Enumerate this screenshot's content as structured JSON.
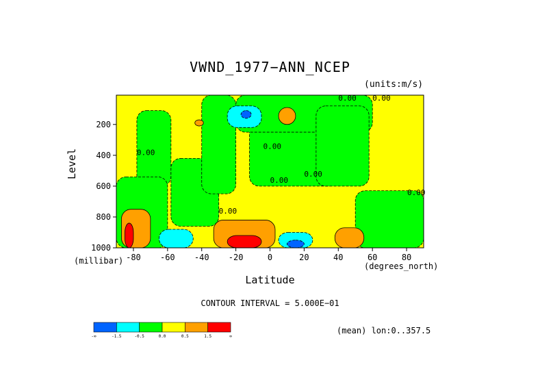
{
  "chart_data": {
    "type": "heatmap",
    "subtype": "filled-contour",
    "title": "VWND_1977−ANN_NCEP",
    "units": "(units:m/s)",
    "xlabel": "Latitude",
    "xunit": "(degrees_north)",
    "ylabel": "Level",
    "yunit": "(millibar)",
    "xlim": [
      -90,
      90
    ],
    "ylim": [
      1000,
      10
    ],
    "y_inverted": true,
    "x_ticks": [
      -80,
      -60,
      -40,
      -20,
      0,
      20,
      40,
      60,
      80
    ],
    "y_ticks": [
      200,
      400,
      600,
      800,
      1000
    ],
    "contour_interval": "CONTOUR INTERVAL = 5.000E−01",
    "mean_note": "(mean) lon:0..357.5",
    "contour_labels": [
      "0.00",
      "0.00",
      "0.00",
      "0.00",
      "0.00",
      "0.00",
      "0.00",
      "0.00"
    ],
    "colorbar": {
      "colors": [
        "#0064ff",
        "#00ffff",
        "#00ff00",
        "#ffff00",
        "#ffa000",
        "#ff0000"
      ],
      "labels": [
        "-∞",
        "-1.5",
        "-0.5",
        "0.0",
        "0.5",
        "1.5",
        "∞"
      ]
    },
    "regions": [
      {
        "level": "0.0..0.5",
        "lat": [
          -90,
          90
        ],
        "lev": [
          10,
          1000
        ]
      },
      {
        "level": "-0.5..0.0",
        "lat": [
          -78,
          -58
        ],
        "lev": [
          110,
          600
        ]
      },
      {
        "level": "-0.5..0.0",
        "lat": [
          -58,
          -30
        ],
        "lev": [
          420,
          860
        ]
      },
      {
        "level": "-0.5..0.0",
        "lat": [
          -40,
          -20
        ],
        "lev": [
          10,
          650
        ]
      },
      {
        "level": "-0.5..0.0",
        "lat": [
          -12,
          40
        ],
        "lev": [
          10,
          600
        ]
      },
      {
        "level": "-0.5..0.0",
        "lat": [
          -20,
          60
        ],
        "lev": [
          10,
          250
        ]
      },
      {
        "level": "-0.5..0.0",
        "lat": [
          50,
          90
        ],
        "lev": [
          630,
          1000
        ]
      },
      {
        "level": "-0.5..0.0",
        "lat": [
          27,
          58
        ],
        "lev": [
          80,
          600
        ]
      },
      {
        "level": "-0.5..0.0",
        "lat": [
          -90,
          -60
        ],
        "lev": [
          540,
          1000
        ]
      },
      {
        "level": "-1.5..-0.5",
        "lat": [
          -25,
          -5
        ],
        "lev": [
          80,
          220
        ]
      },
      {
        "level": "-1.5..-0.5",
        "lat": [
          -65,
          -45
        ],
        "lev": [
          880,
          1000
        ]
      },
      {
        "level": "-1.5..-0.5",
        "lat": [
          5,
          25
        ],
        "lev": [
          900,
          1000
        ]
      },
      {
        "level": "<-1.5",
        "lat": [
          -17,
          -11
        ],
        "lev": [
          110,
          160
        ]
      },
      {
        "level": "<-1.5",
        "lat": [
          10,
          20
        ],
        "lev": [
          950,
          1000
        ]
      },
      {
        "level": "0.5..1.5",
        "lat": [
          5,
          15
        ],
        "lev": [
          90,
          200
        ]
      },
      {
        "level": "0.5..1.5",
        "lat": [
          -44,
          -39
        ],
        "lev": [
          170,
          210
        ]
      },
      {
        "level": "0.5..1.5",
        "lat": [
          -33,
          3
        ],
        "lev": [
          820,
          1000
        ]
      },
      {
        "level": "0.5..1.5",
        "lat": [
          -87,
          -70
        ],
        "lev": [
          750,
          1000
        ]
      },
      {
        "level": "0.5..1.5",
        "lat": [
          38,
          55
        ],
        "lev": [
          870,
          1000
        ]
      },
      {
        "level": ">1.5",
        "lat": [
          -25,
          -5
        ],
        "lev": [
          920,
          1000
        ]
      },
      {
        "level": ">1.5",
        "lat": [
          -85,
          -80
        ],
        "lev": [
          840,
          1000
        ]
      }
    ]
  }
}
